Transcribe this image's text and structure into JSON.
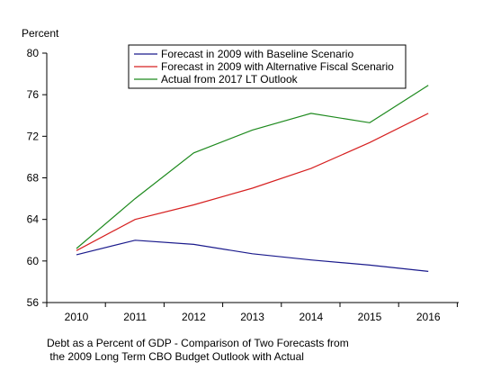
{
  "chart_data": {
    "type": "line",
    "ylabel": "Percent",
    "xlabel": "",
    "x": [
      "2010",
      "2011",
      "2012",
      "2013",
      "2014",
      "2015",
      "2016"
    ],
    "ylim": [
      56,
      80
    ],
    "yticks": [
      "56",
      "60",
      "64",
      "68",
      "72",
      "76",
      "80"
    ],
    "legend_position": "top-right",
    "grid": false,
    "series": [
      {
        "name": "Forecast in 2009 with Baseline Scenario",
        "color": "#1a1a8c",
        "values": [
          60.6,
          62.0,
          61.6,
          60.7,
          60.1,
          59.6,
          59.0
        ]
      },
      {
        "name": "Forecast in 2009 with Alternative Fiscal Scenario",
        "color": "#d62020",
        "values": [
          61.0,
          64.0,
          65.4,
          67.0,
          68.9,
          71.4,
          74.2
        ]
      },
      {
        "name": "Actual from 2017 LT Outlook",
        "color": "#1e8a1e",
        "values": [
          61.2,
          66.0,
          70.4,
          72.6,
          74.2,
          73.3,
          76.9
        ]
      }
    ],
    "caption": [
      "Debt as a Percent of GDP - Comparison of Two Forecasts from",
      " the 2009 Long Term CBO Budget Outlook with Actual"
    ]
  }
}
